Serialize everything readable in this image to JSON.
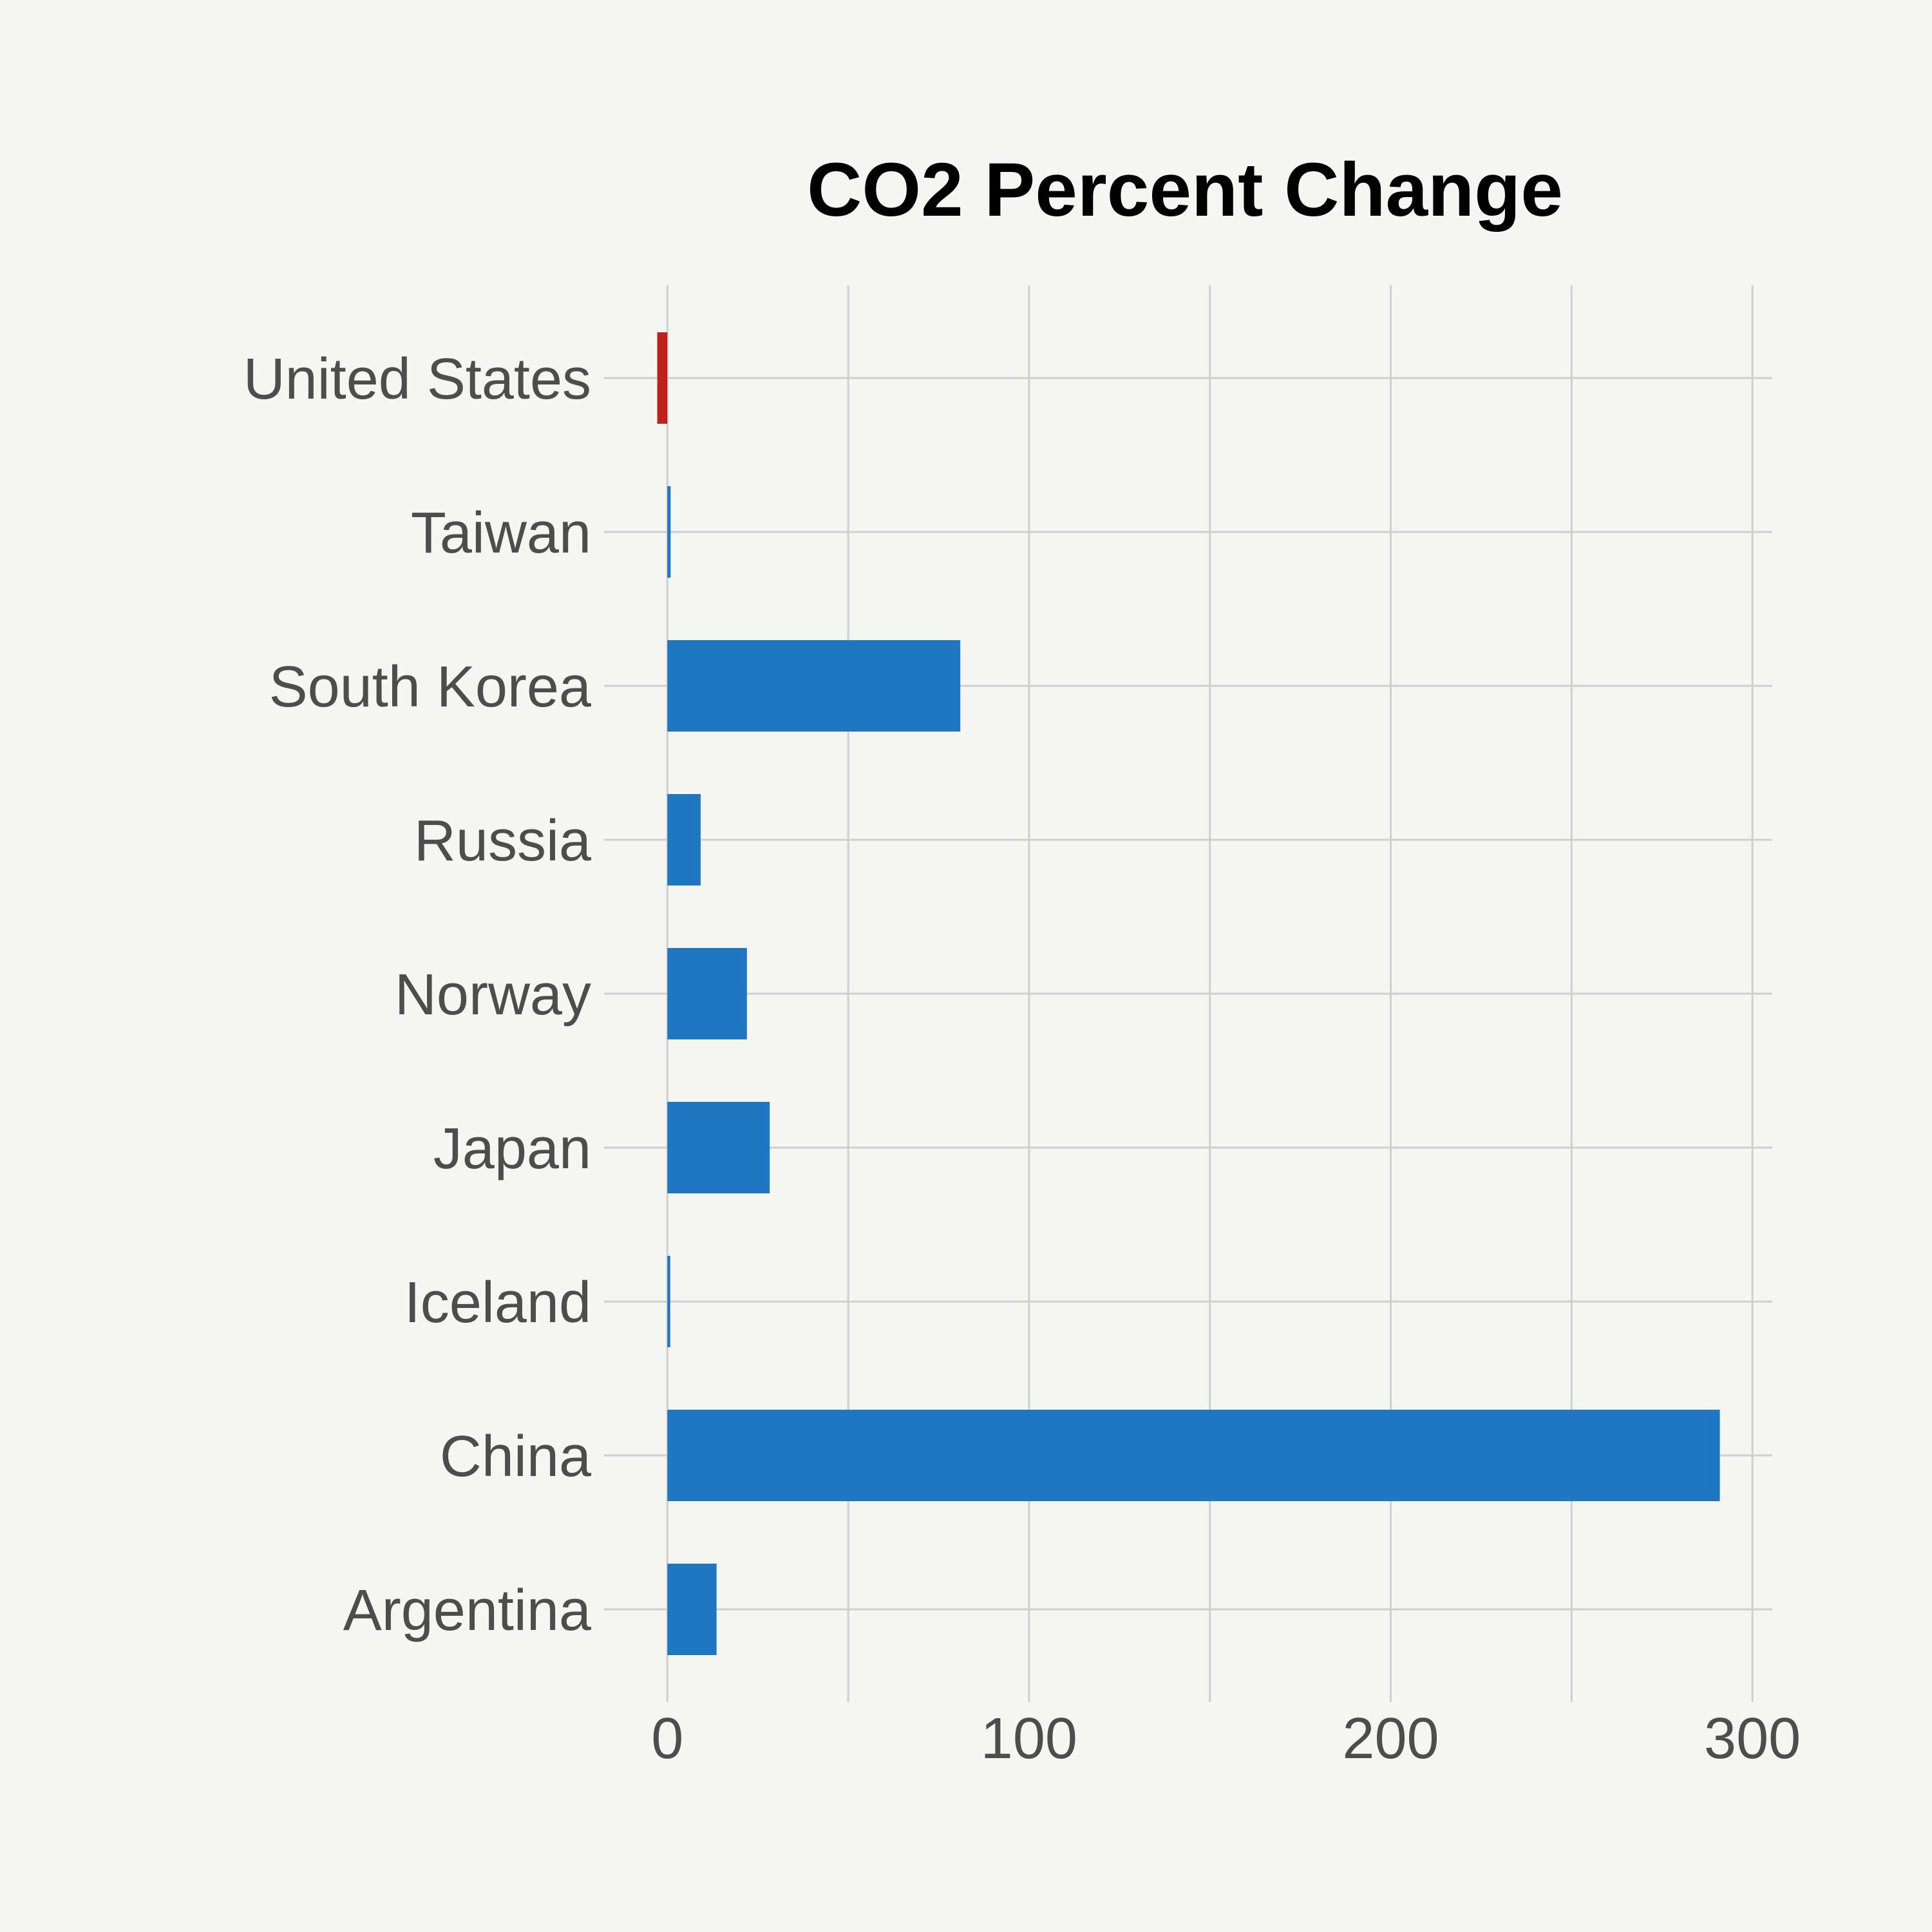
{
  "chart_data": {
    "type": "bar",
    "orientation": "horizontal",
    "title": "CO2 Percent Change",
    "xlabel": "",
    "ylabel": "",
    "categories": [
      "United States",
      "Taiwan",
      "South Korea",
      "Russia",
      "Norway",
      "Japan",
      "Iceland",
      "China",
      "Argentina"
    ],
    "values": [
      -2.8,
      0.9,
      81,
      9.2,
      22,
      28.3,
      0.8,
      291,
      13.6
    ],
    "xlim": [
      -17.5,
      305.5
    ],
    "xticks": [
      0,
      100,
      200,
      300
    ],
    "xtick_labels": [
      "0",
      "100",
      "200",
      "300"
    ],
    "minor_xticks": [
      50,
      150,
      250
    ],
    "grid": true,
    "legend": false,
    "colors": {
      "positive": "#1f77c1",
      "negative": "#c0201c"
    }
  }
}
